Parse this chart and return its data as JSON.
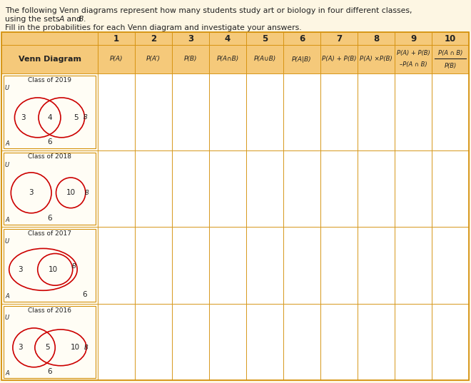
{
  "bg_color": "#fdf6e3",
  "header_bg": "#f5c97a",
  "border_color": "#d4900a",
  "text_color": "#222222",
  "venn_color": "#cc0000",
  "title_line1": "The following Venn diagrams represent how many students study art or biology in four different classes,",
  "title_line2": "using the sets ",
  "title_line2_italic": "A",
  "title_line2b": " and ",
  "title_line2_italic2": "B",
  "title_line2c": ".",
  "subtitle": "Fill in the probabilities for each Venn diagram and investigate your answers.",
  "col_numbers": [
    "1",
    "2",
    "3",
    "4",
    "5",
    "6",
    "7",
    "8",
    "9",
    "10"
  ],
  "venn_label": "Venn Diagram",
  "classes": [
    "Class of 2019",
    "Class of 2018",
    "Class of 2017",
    "Class of 2016"
  ],
  "fig_w": 6.6,
  "fig_h": 5.37,
  "dpi": 100
}
